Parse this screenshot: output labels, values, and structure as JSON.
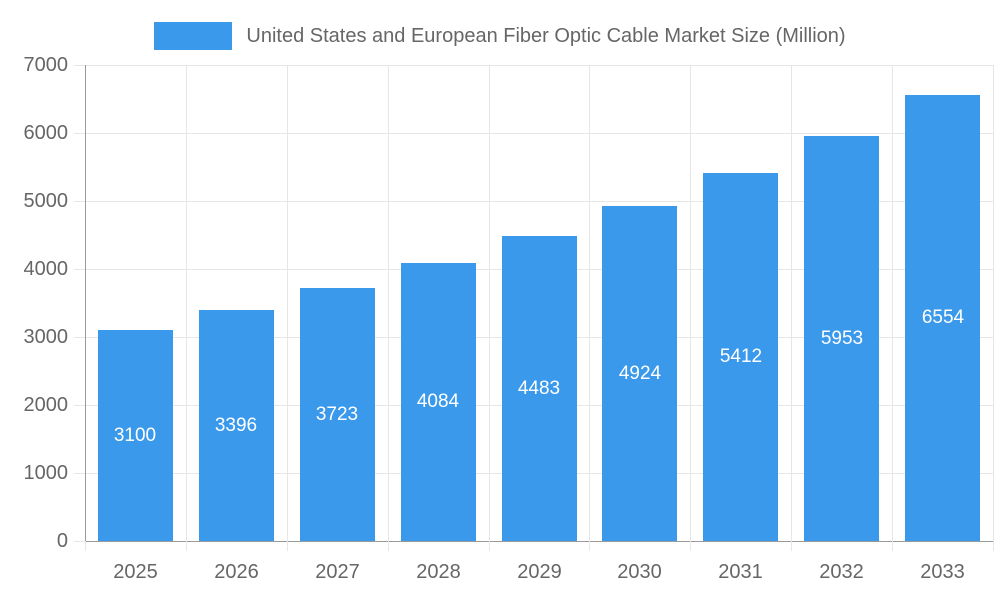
{
  "chart_data": {
    "type": "bar",
    "title": "United States and European Fiber Optic Cable Market Size (Million)",
    "categories": [
      "2025",
      "2026",
      "2027",
      "2028",
      "2029",
      "2030",
      "2031",
      "2032",
      "2033"
    ],
    "values": [
      3100,
      3396,
      3723,
      4084,
      4483,
      4924,
      5412,
      5953,
      6554
    ],
    "xlabel": "",
    "ylabel": "",
    "ylim": [
      0,
      7000
    ],
    "ytick_step": 1000,
    "yticks": [
      "0",
      "1000",
      "2000",
      "3000",
      "4000",
      "5000",
      "6000",
      "7000"
    ],
    "grid": true,
    "legend_position": "top",
    "colors": {
      "bar": "#3b99ec",
      "value_label": "#ffffff",
      "text": "#666666",
      "grid": "#e6e6e6",
      "axis": "#9a9a9a"
    }
  }
}
